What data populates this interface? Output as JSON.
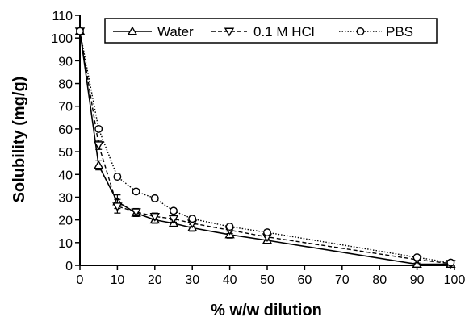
{
  "chart_data": {
    "type": "line",
    "xlabel": "% w/w dilution",
    "ylabel": "Solubility (mg/g)",
    "xlim": [
      0,
      100
    ],
    "ylim": [
      0,
      110
    ],
    "x_ticks": [
      0,
      10,
      20,
      30,
      40,
      50,
      60,
      70,
      80,
      90,
      100
    ],
    "y_ticks": [
      0,
      10,
      20,
      30,
      40,
      50,
      60,
      70,
      80,
      90,
      100,
      110
    ],
    "grid": false,
    "legend_position": "top-right",
    "series": [
      {
        "name": "Water",
        "marker": "triangle-up",
        "line_style": "solid",
        "color": "#000000",
        "x": [
          0,
          5,
          10,
          15,
          20,
          25,
          30,
          40,
          50,
          90,
          99
        ],
        "y": [
          103,
          44,
          28,
          23,
          20,
          18.5,
          16.5,
          13.5,
          11,
          0.5,
          0.5
        ],
        "error": [
          0,
          2,
          3,
          1.5,
          1.5,
          1.5,
          1.5,
          1.5,
          1.5,
          0.5,
          0.5
        ]
      },
      {
        "name": "0.1 M HCl",
        "marker": "triangle-down",
        "line_style": "dashed",
        "color": "#000000",
        "x": [
          0,
          5,
          10,
          15,
          20,
          25,
          30,
          40,
          50,
          90,
          99
        ],
        "y": [
          103,
          53,
          26,
          23.5,
          21.5,
          20.5,
          18.5,
          15.5,
          12.5,
          2.5,
          0.8
        ],
        "error": [
          0,
          2,
          3,
          1.5,
          1.5,
          1.5,
          1.5,
          1.5,
          1.5,
          0.5,
          0.5
        ]
      },
      {
        "name": "PBS",
        "marker": "circle",
        "line_style": "dotted",
        "color": "#000000",
        "x": [
          0,
          5,
          10,
          15,
          20,
          25,
          30,
          40,
          50,
          90,
          99
        ],
        "y": [
          103,
          60,
          39,
          32.5,
          29.5,
          24,
          20.5,
          17,
          14.5,
          3.5,
          1.2
        ],
        "error": [
          0,
          1,
          1,
          1,
          1,
          1,
          1,
          1,
          1,
          0.5,
          0.5
        ]
      }
    ]
  }
}
